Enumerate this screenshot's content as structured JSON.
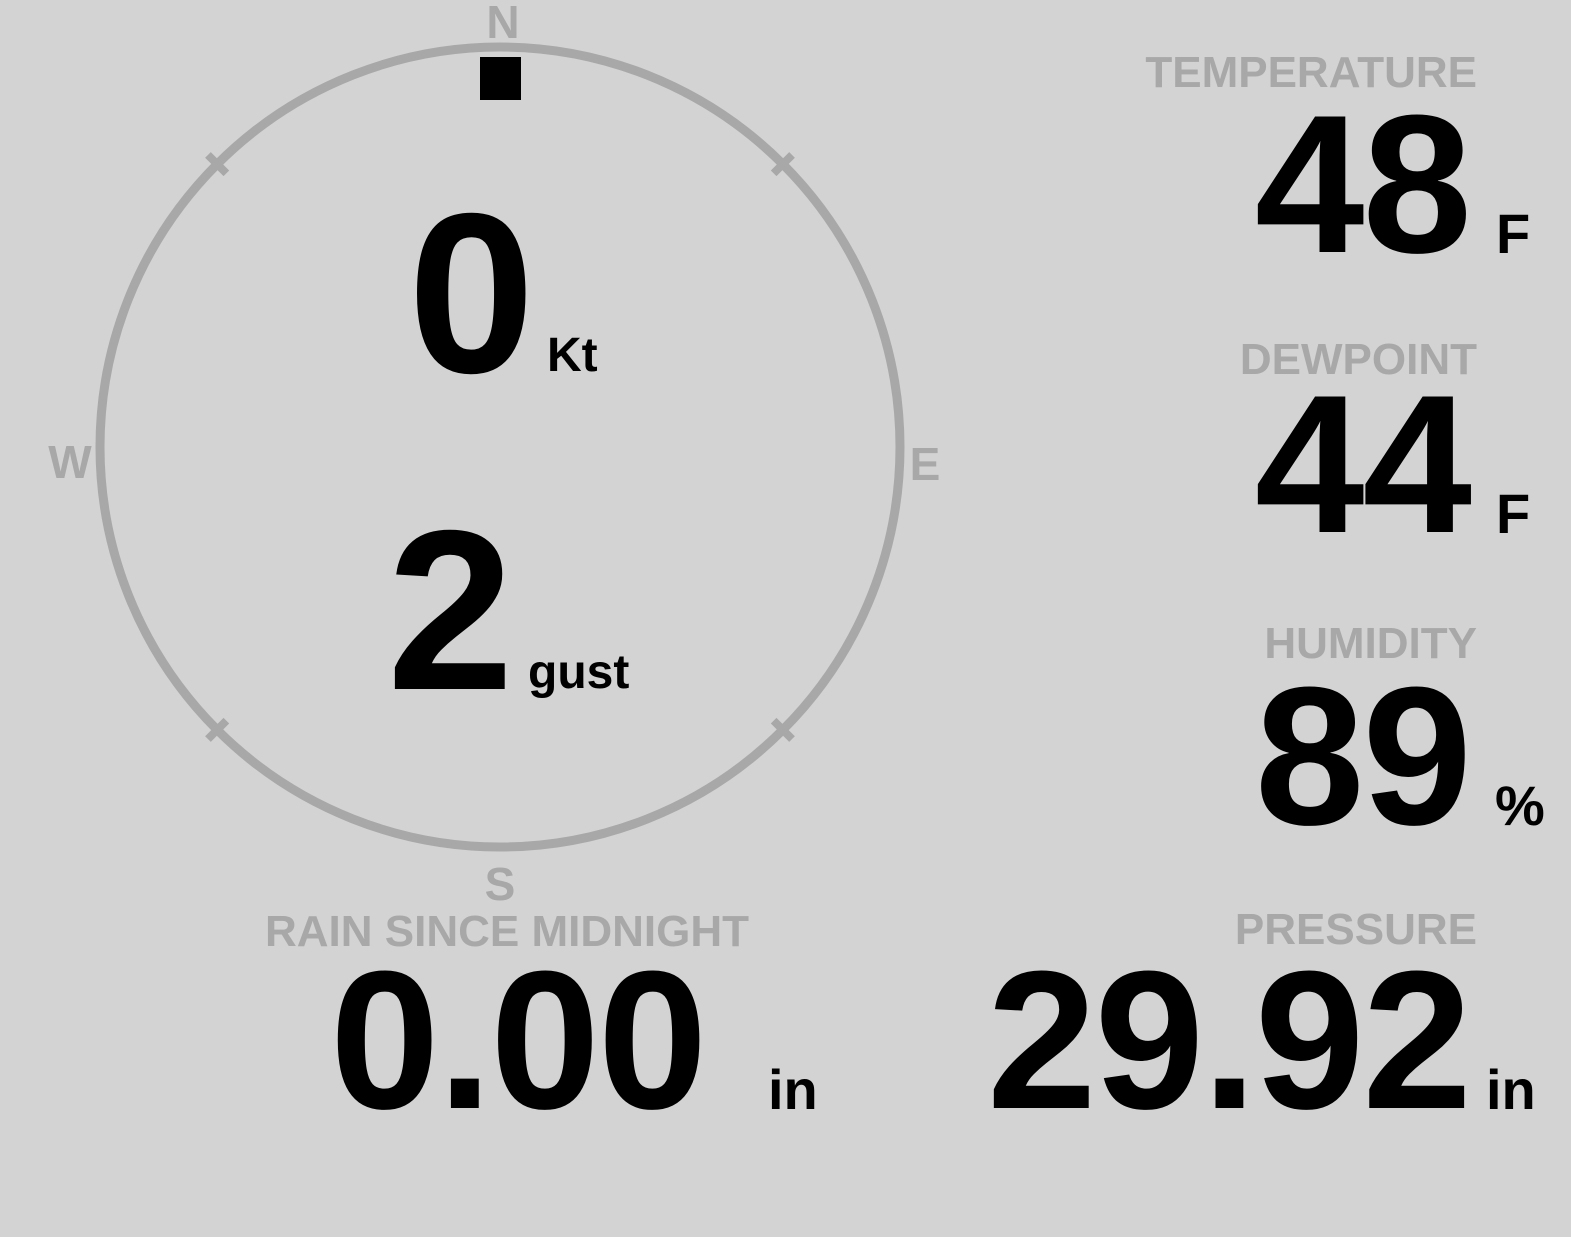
{
  "colors": {
    "background": "#d3d3d3",
    "muted": "#a8a8a8",
    "text": "#000000"
  },
  "wind": {
    "cardinals": {
      "north": "N",
      "east": "E",
      "south": "S",
      "west": "W"
    },
    "direction_deg": 0,
    "speed_value": "0",
    "speed_unit": "Kt",
    "gust_value": "2",
    "gust_unit": "gust"
  },
  "metrics": {
    "temperature": {
      "label": "TEMPERATURE",
      "value": "48",
      "unit": "F"
    },
    "dewpoint": {
      "label": "DEWPOINT",
      "value": "44",
      "unit": "F"
    },
    "humidity": {
      "label": "HUMIDITY",
      "value": "89",
      "unit": "%"
    },
    "rain_since_midnight": {
      "label": "RAIN SINCE MIDNIGHT",
      "value": "0.00",
      "unit": "in"
    },
    "pressure": {
      "label": "PRESSURE",
      "value": "29.92",
      "unit": "in"
    }
  }
}
